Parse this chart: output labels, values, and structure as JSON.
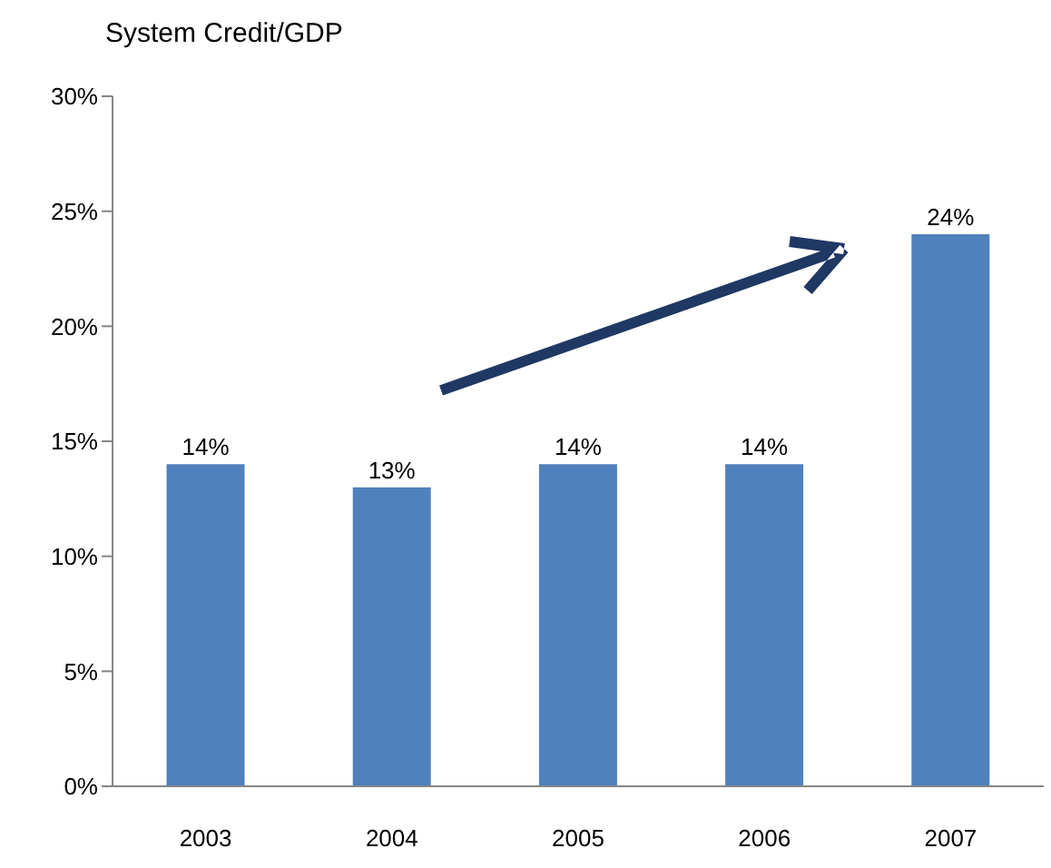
{
  "chart_data": {
    "type": "bar",
    "title": "System Credit/GDP",
    "categories": [
      "2003",
      "2004",
      "2005",
      "2006",
      "2007"
    ],
    "values": [
      14,
      13,
      14,
      14,
      24
    ],
    "value_labels": [
      "14%",
      "13%",
      "14%",
      "14%",
      "24%"
    ],
    "color": "#4f81bd",
    "ylim": [
      0,
      30
    ],
    "yticks": [
      {
        "value": 0,
        "label": "0%"
      },
      {
        "value": 5,
        "label": "5%"
      },
      {
        "value": 10,
        "label": "10%"
      },
      {
        "value": 15,
        "label": "15%"
      },
      {
        "value": 20,
        "label": "20%"
      },
      {
        "value": 25,
        "label": "25%"
      },
      {
        "value": 30,
        "label": "30%"
      }
    ],
    "grid": false,
    "legend": false
  }
}
